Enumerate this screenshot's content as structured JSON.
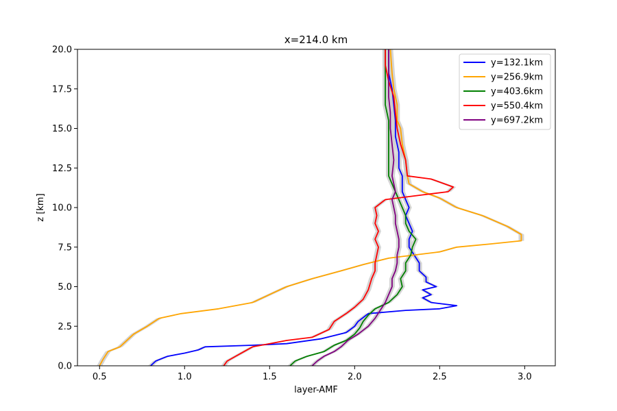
{
  "chart_data": {
    "type": "line",
    "title": "x=214.0 km",
    "xlabel": "layer-AMF",
    "ylabel": "z [km]",
    "xlim": [
      0.37,
      3.18
    ],
    "ylim": [
      0,
      20
    ],
    "x_ticks": [
      "0.5",
      "1.0",
      "1.5",
      "2.0",
      "2.5",
      "3.0"
    ],
    "y_ticks": [
      "0.0",
      "2.5",
      "5.0",
      "7.5",
      "10.0",
      "12.5",
      "15.0",
      "17.5",
      "20.0"
    ],
    "grid": false,
    "legend_position": "top-right",
    "uncertainty_band_color": "#cccccc",
    "series": [
      {
        "name": "y=132.1km",
        "color": "#0000ff",
        "points": [
          [
            0.8,
            0
          ],
          [
            0.83,
            0.3
          ],
          [
            0.9,
            0.6
          ],
          [
            1.0,
            0.8
          ],
          [
            1.08,
            1.0
          ],
          [
            1.12,
            1.2
          ],
          [
            1.4,
            1.3
          ],
          [
            1.6,
            1.4
          ],
          [
            1.8,
            1.7
          ],
          [
            1.95,
            2.1
          ],
          [
            2.0,
            2.5
          ],
          [
            2.02,
            2.8
          ],
          [
            2.08,
            3.3
          ],
          [
            2.3,
            3.5
          ],
          [
            2.5,
            3.6
          ],
          [
            2.6,
            3.8
          ],
          [
            2.45,
            4.0
          ],
          [
            2.4,
            4.3
          ],
          [
            2.45,
            4.5
          ],
          [
            2.4,
            4.8
          ],
          [
            2.48,
            5.0
          ],
          [
            2.42,
            5.3
          ],
          [
            2.42,
            5.6
          ],
          [
            2.38,
            6.0
          ],
          [
            2.38,
            6.5
          ],
          [
            2.35,
            7.0
          ],
          [
            2.32,
            7.5
          ],
          [
            2.32,
            8.0
          ],
          [
            2.34,
            8.5
          ],
          [
            2.32,
            9.0
          ],
          [
            2.3,
            9.5
          ],
          [
            2.32,
            10.0
          ],
          [
            2.3,
            10.5
          ],
          [
            2.28,
            11.0
          ],
          [
            2.28,
            11.5
          ],
          [
            2.28,
            12.0
          ],
          [
            2.26,
            12.5
          ],
          [
            2.26,
            13.5
          ],
          [
            2.24,
            14.5
          ],
          [
            2.24,
            15.5
          ],
          [
            2.23,
            16.5
          ],
          [
            2.22,
            17.5
          ],
          [
            2.2,
            18.5
          ],
          [
            2.2,
            20
          ]
        ]
      },
      {
        "name": "y=256.9km",
        "color": "#ffa500",
        "points": [
          [
            0.5,
            0
          ],
          [
            0.52,
            0.4
          ],
          [
            0.55,
            0.9
          ],
          [
            0.62,
            1.2
          ],
          [
            0.7,
            2.0
          ],
          [
            0.78,
            2.5
          ],
          [
            0.85,
            3.0
          ],
          [
            0.98,
            3.3
          ],
          [
            1.2,
            3.6
          ],
          [
            1.4,
            4.0
          ],
          [
            1.52,
            4.6
          ],
          [
            1.6,
            5.0
          ],
          [
            1.75,
            5.5
          ],
          [
            1.92,
            6.0
          ],
          [
            2.05,
            6.4
          ],
          [
            2.2,
            6.8
          ],
          [
            2.5,
            7.2
          ],
          [
            2.6,
            7.5
          ],
          [
            2.8,
            7.7
          ],
          [
            2.98,
            7.9
          ],
          [
            2.98,
            8.3
          ],
          [
            2.9,
            8.8
          ],
          [
            2.75,
            9.5
          ],
          [
            2.6,
            10.0
          ],
          [
            2.5,
            10.6
          ],
          [
            2.4,
            11.0
          ],
          [
            2.32,
            11.5
          ],
          [
            2.31,
            12.0
          ],
          [
            2.3,
            13.0
          ],
          [
            2.28,
            14.0
          ],
          [
            2.27,
            15.0
          ],
          [
            2.25,
            15.5
          ],
          [
            2.25,
            16.5
          ],
          [
            2.23,
            17.5
          ],
          [
            2.22,
            18.5
          ],
          [
            2.21,
            20
          ]
        ]
      },
      {
        "name": "y=403.6km",
        "color": "#008000",
        "points": [
          [
            1.62,
            0
          ],
          [
            1.65,
            0.3
          ],
          [
            1.72,
            0.6
          ],
          [
            1.82,
            0.9
          ],
          [
            1.88,
            1.3
          ],
          [
            1.95,
            1.6
          ],
          [
            2.0,
            2.0
          ],
          [
            2.03,
            2.4
          ],
          [
            2.05,
            2.8
          ],
          [
            2.08,
            3.2
          ],
          [
            2.12,
            3.6
          ],
          [
            2.2,
            4.0
          ],
          [
            2.25,
            4.5
          ],
          [
            2.28,
            5.0
          ],
          [
            2.27,
            5.5
          ],
          [
            2.3,
            6.0
          ],
          [
            2.3,
            6.5
          ],
          [
            2.33,
            7.0
          ],
          [
            2.34,
            7.5
          ],
          [
            2.36,
            8.0
          ],
          [
            2.32,
            8.5
          ],
          [
            2.3,
            9.0
          ],
          [
            2.3,
            9.5
          ],
          [
            2.28,
            10.0
          ],
          [
            2.26,
            10.5
          ],
          [
            2.24,
            11.0
          ],
          [
            2.22,
            11.5
          ],
          [
            2.2,
            12.0
          ],
          [
            2.2,
            12.5
          ],
          [
            2.2,
            13.5
          ],
          [
            2.2,
            14.5
          ],
          [
            2.2,
            15.5
          ],
          [
            2.18,
            16.5
          ],
          [
            2.18,
            17.5
          ],
          [
            2.18,
            18.5
          ],
          [
            2.18,
            20
          ]
        ]
      },
      {
        "name": "y=550.4km",
        "color": "#ff0000",
        "points": [
          [
            1.23,
            0
          ],
          [
            1.25,
            0.3
          ],
          [
            1.3,
            0.6
          ],
          [
            1.35,
            0.9
          ],
          [
            1.4,
            1.2
          ],
          [
            1.5,
            1.4
          ],
          [
            1.6,
            1.6
          ],
          [
            1.75,
            1.8
          ],
          [
            1.85,
            2.3
          ],
          [
            1.88,
            2.8
          ],
          [
            1.95,
            3.3
          ],
          [
            2.0,
            3.7
          ],
          [
            2.05,
            4.2
          ],
          [
            2.08,
            4.8
          ],
          [
            2.1,
            5.5
          ],
          [
            2.12,
            6.0
          ],
          [
            2.12,
            6.5
          ],
          [
            2.13,
            7.0
          ],
          [
            2.14,
            7.5
          ],
          [
            2.12,
            8.0
          ],
          [
            2.14,
            8.5
          ],
          [
            2.12,
            9.0
          ],
          [
            2.13,
            9.5
          ],
          [
            2.12,
            10.0
          ],
          [
            2.18,
            10.5
          ],
          [
            2.4,
            10.8
          ],
          [
            2.55,
            11.0
          ],
          [
            2.58,
            11.3
          ],
          [
            2.45,
            11.8
          ],
          [
            2.31,
            12.0
          ],
          [
            2.3,
            13.0
          ],
          [
            2.27,
            14.0
          ],
          [
            2.25,
            15.0
          ],
          [
            2.24,
            16.0
          ],
          [
            2.23,
            17.0
          ],
          [
            2.2,
            18.0
          ],
          [
            2.18,
            19.0
          ],
          [
            2.18,
            20
          ]
        ]
      },
      {
        "name": "y=697.2km",
        "color": "#800080",
        "points": [
          [
            1.75,
            0
          ],
          [
            1.78,
            0.3
          ],
          [
            1.82,
            0.6
          ],
          [
            1.88,
            0.9
          ],
          [
            1.92,
            1.2
          ],
          [
            1.96,
            1.6
          ],
          [
            2.02,
            2.0
          ],
          [
            2.08,
            2.5
          ],
          [
            2.12,
            3.0
          ],
          [
            2.15,
            3.5
          ],
          [
            2.18,
            4.0
          ],
          [
            2.2,
            4.5
          ],
          [
            2.22,
            5.0
          ],
          [
            2.22,
            5.5
          ],
          [
            2.24,
            6.0
          ],
          [
            2.25,
            6.5
          ],
          [
            2.25,
            7.0
          ],
          [
            2.26,
            7.5
          ],
          [
            2.26,
            8.0
          ],
          [
            2.25,
            8.5
          ],
          [
            2.24,
            9.0
          ],
          [
            2.24,
            9.5
          ],
          [
            2.23,
            10.0
          ],
          [
            2.22,
            10.5
          ],
          [
            2.24,
            11.0
          ],
          [
            2.23,
            11.5
          ],
          [
            2.22,
            12.0
          ],
          [
            2.23,
            13.0
          ],
          [
            2.22,
            14.0
          ],
          [
            2.21,
            15.0
          ],
          [
            2.21,
            16.0
          ],
          [
            2.2,
            17.0
          ],
          [
            2.2,
            18.0
          ],
          [
            2.2,
            19.0
          ],
          [
            2.2,
            20
          ]
        ]
      }
    ]
  }
}
